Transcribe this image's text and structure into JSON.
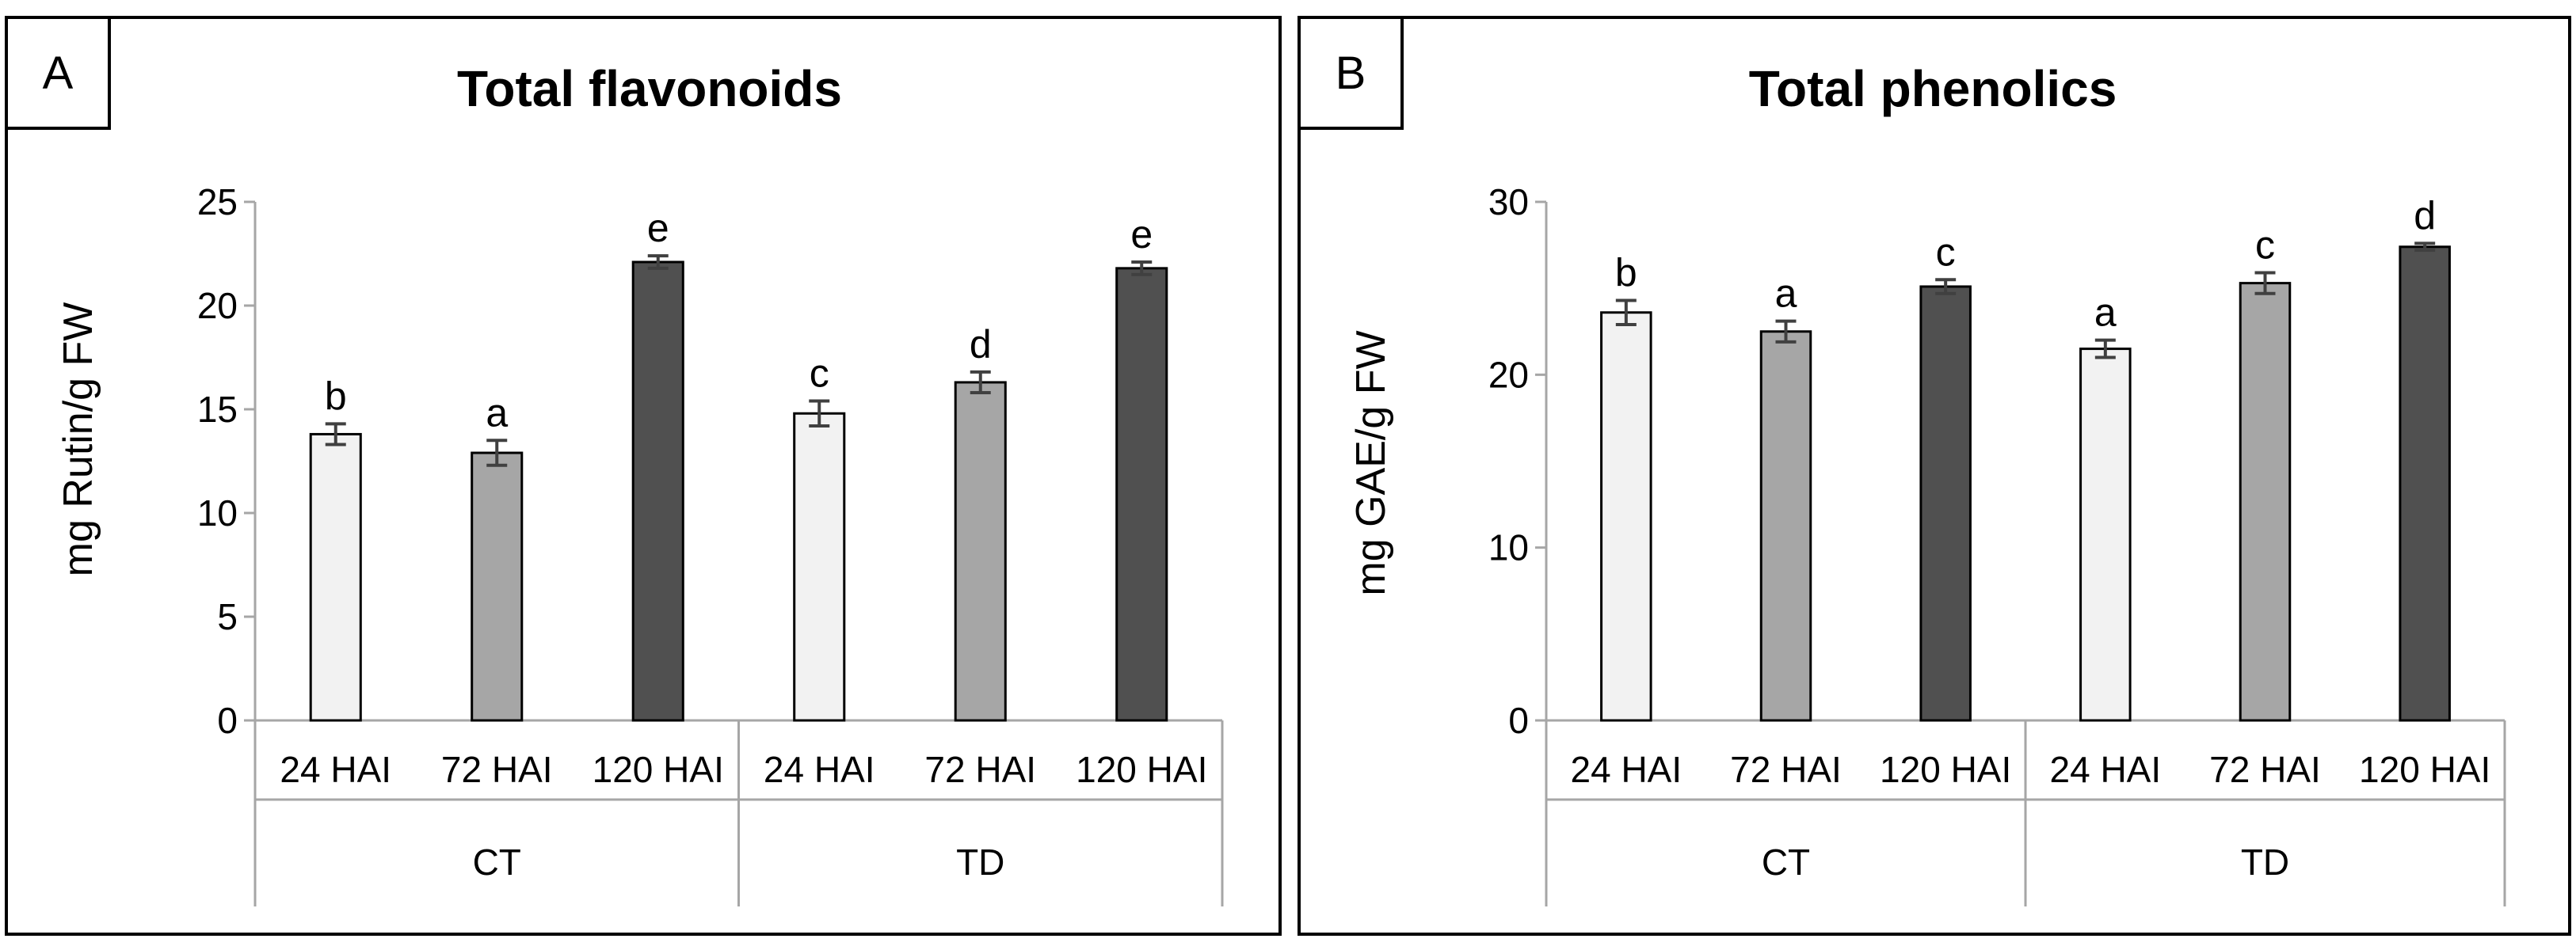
{
  "colors": {
    "24 HAI": "#f2f2f2",
    "72 HAI": "#a6a6a6",
    "120 HAI": "#505050",
    "axis": "#a6a6a6",
    "error_bar": "#404040"
  },
  "chart_data": [
    {
      "panel": "A",
      "type": "bar",
      "title": "Total flavonoids",
      "ylabel": "mg Rutin/g FW",
      "xlabel": "",
      "ylim": [
        0,
        25
      ],
      "yticks": [
        0,
        5,
        10,
        15,
        20,
        25
      ],
      "groups": [
        "CT",
        "TD"
      ],
      "categories": [
        "24 HAI",
        "72 HAI",
        "120 HAI",
        "24 HAI",
        "72 HAI",
        "120 HAI"
      ],
      "values": [
        13.8,
        12.9,
        22.1,
        14.8,
        16.3,
        21.8
      ],
      "errors": [
        0.5,
        0.6,
        0.3,
        0.6,
        0.5,
        0.3
      ],
      "significance": [
        "b",
        "a",
        "e",
        "c",
        "d",
        "e"
      ]
    },
    {
      "panel": "B",
      "type": "bar",
      "title": "Total phenolics",
      "ylabel": "mg GAE/g FW",
      "xlabel": "",
      "ylim": [
        0,
        30
      ],
      "yticks": [
        0,
        10,
        20,
        30
      ],
      "groups": [
        "CT",
        "TD"
      ],
      "categories": [
        "24 HAI",
        "72 HAI",
        "120 HAI",
        "24 HAI",
        "72 HAI",
        "120 HAI"
      ],
      "values": [
        23.6,
        22.5,
        25.1,
        21.5,
        25.3,
        27.4
      ],
      "errors": [
        0.7,
        0.6,
        0.4,
        0.5,
        0.6,
        0.2
      ],
      "significance": [
        "b",
        "a",
        "c",
        "a",
        "c",
        "d"
      ]
    }
  ]
}
